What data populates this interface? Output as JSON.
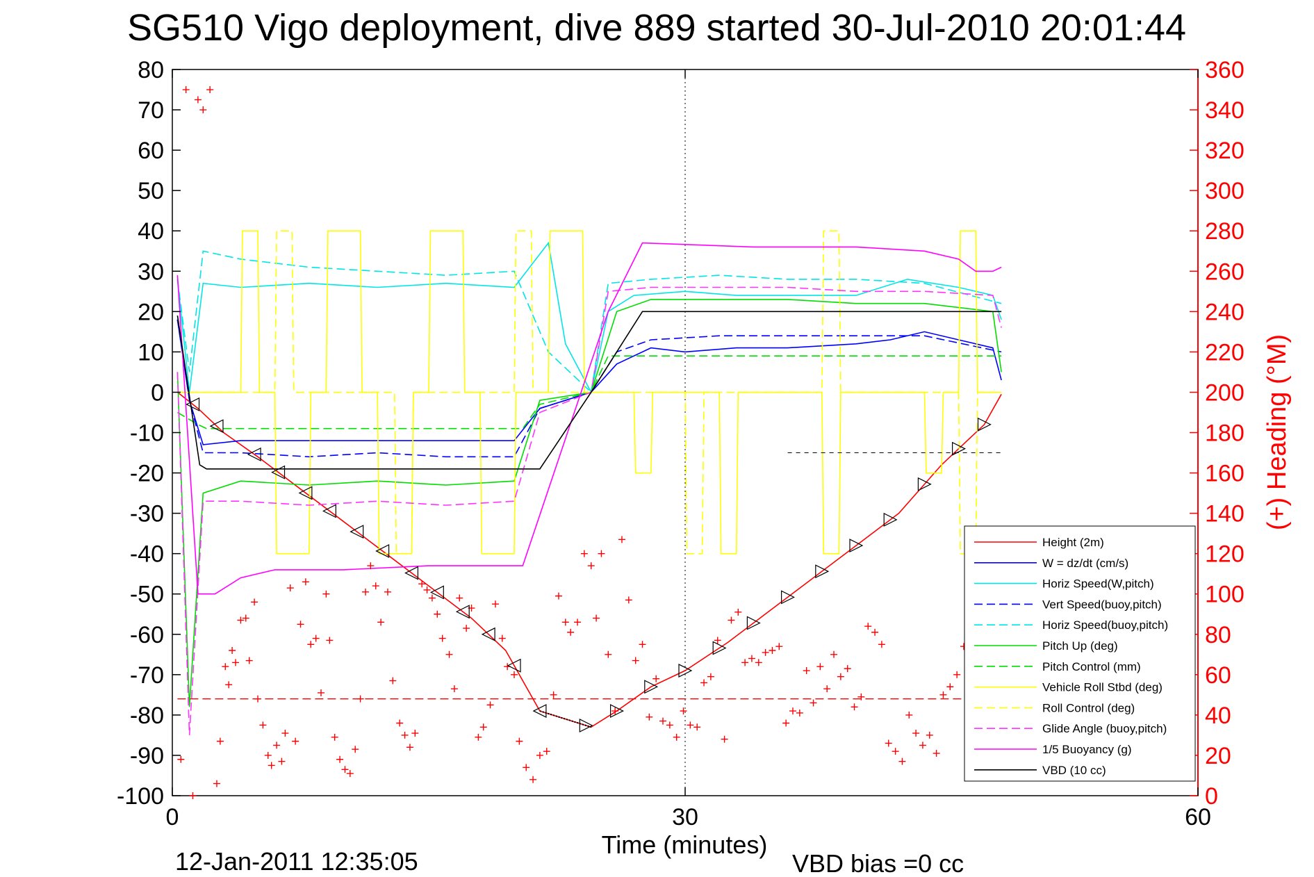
{
  "chart_data": {
    "type": "line",
    "title": "SG510 Vigo deployment, dive 889 started 30-Jul-2010 20:01:44",
    "xlabel": "Time (minutes)",
    "ylabel_right": "(+) Heading (°M)",
    "footer_date": "12-Jan-2011 12:35:05",
    "footer_note": "VBD bias =0 cc",
    "xlim": [
      0,
      60
    ],
    "ylim": [
      -100,
      80
    ],
    "ylim_right": [
      0,
      360
    ],
    "x_ticks": [
      0,
      30,
      60
    ],
    "y_ticks": [
      80,
      70,
      60,
      50,
      40,
      30,
      20,
      10,
      0,
      -10,
      -20,
      -30,
      -40,
      -50,
      -60,
      -70,
      -80,
      -90,
      -100
    ],
    "y_right_ticks": [
      360,
      340,
      320,
      300,
      280,
      260,
      240,
      220,
      200,
      180,
      160,
      140,
      120,
      100,
      80,
      60,
      40,
      20,
      0
    ],
    "grid": "x=30 only",
    "legend_position": "bottom-right",
    "colors": {
      "right_axis": "#ff0000",
      "cyan": "#00e5e5",
      "yellow": "#ffff00",
      "magenta": "#ff33ff",
      "green": "#00dd00"
    },
    "series": [
      {
        "name": "Height (2m)",
        "color": "#ff0000",
        "dash": "solid",
        "x": [
          0.3,
          1.5,
          3,
          5,
          7.5,
          10,
          12.5,
          15,
          17.5,
          19.5,
          21.5,
          24.5,
          26,
          28,
          30,
          32.5,
          35,
          37.5,
          40,
          42.5,
          45,
          47.5,
          48.5
        ],
        "y": [
          0,
          -4,
          -10,
          -16,
          -24,
          -32,
          -40,
          -48,
          -56,
          -64,
          -79,
          -83,
          -79,
          -73,
          -69,
          -62,
          -54,
          -46,
          -38,
          -30,
          -18,
          -8,
          -0.5
        ]
      },
      {
        "name": "W = dz/dt (cm/s)",
        "color": "#0000ff",
        "dash": "solid",
        "x": [
          0.3,
          1,
          1.8,
          4,
          8,
          12,
          16,
          20,
          21.5,
          24.5,
          26,
          28,
          30,
          33,
          36,
          40,
          42,
          44,
          46,
          48,
          48.5
        ],
        "y": [
          18,
          -2,
          -13,
          -12,
          -12,
          -12,
          -12,
          -12,
          -4,
          0,
          7,
          11,
          10,
          11,
          11,
          12,
          13,
          15,
          13,
          11,
          3
        ]
      },
      {
        "name": "Horiz Speed(W,pitch)",
        "color": "#00e5e5",
        "dash": "solid",
        "x": [
          0.3,
          1,
          1.8,
          4,
          8,
          12,
          16,
          20,
          22,
          23,
          24.5,
          25.5,
          27,
          30,
          33,
          36,
          40,
          43,
          46,
          48,
          48.5
        ],
        "y": [
          28,
          0,
          27,
          26,
          27,
          26,
          27,
          26,
          37,
          12,
          0,
          20,
          24,
          25,
          24,
          24,
          24,
          28,
          26,
          24,
          18
        ]
      },
      {
        "name": "Vert Speed(buoy,pitch)",
        "color": "#0000ff",
        "dash": "dashed",
        "x": [
          0.3,
          1,
          1.8,
          4,
          8,
          12,
          16,
          20,
          21.5,
          24.5,
          26,
          28,
          32,
          36,
          40,
          44,
          48.5
        ],
        "y": [
          18,
          -2,
          -15,
          -15,
          -16,
          -15,
          -16,
          -16,
          -4,
          0,
          10,
          13,
          14,
          14,
          14,
          14,
          10
        ]
      },
      {
        "name": "Horiz Speed(buoy,pitch)",
        "color": "#00e5e5",
        "dash": "dashed",
        "x": [
          0.3,
          1,
          1.8,
          4,
          8,
          12,
          16,
          20,
          22,
          24.5,
          25.5,
          28,
          32,
          36,
          40,
          44,
          48.5
        ],
        "y": [
          28,
          5,
          35,
          33,
          31,
          30,
          29,
          30,
          10,
          0,
          27,
          28,
          29,
          28,
          28,
          27,
          22
        ]
      },
      {
        "name": "Pitch Up (deg)",
        "color": "#00dd00",
        "dash": "solid",
        "x": [
          0.3,
          1,
          1.8,
          4,
          8,
          12,
          16,
          20,
          21.5,
          24.5,
          26,
          28,
          32,
          36,
          40,
          44,
          48,
          48.5
        ],
        "y": [
          5,
          -78,
          -25,
          -22,
          -23,
          -22,
          -23,
          -22,
          -2,
          0,
          20,
          23,
          23,
          23,
          22,
          22,
          20,
          5
        ]
      },
      {
        "name": "Pitch Control (mm)",
        "color": "#00dd00",
        "dash": "dashed",
        "x": [
          0.3,
          1.5,
          2,
          20.5,
          21.5,
          24.5,
          25.5,
          48.5
        ],
        "y": [
          -5,
          -8,
          -9,
          -9,
          -3,
          0,
          9,
          9
        ]
      },
      {
        "name": "Vehicle Roll Stbd (deg)",
        "color": "#ffff00",
        "dash": "solid",
        "x": [
          0.3,
          4,
          4.1,
          5,
          5.1,
          6,
          6.1,
          8,
          8.1,
          9,
          9.1,
          11,
          11.1,
          12,
          12.1,
          14,
          14.1,
          15,
          15.1,
          17,
          17.1,
          18,
          18.1,
          20,
          20.1,
          22,
          22.1,
          24,
          24.1,
          27,
          27.1,
          28,
          28.1,
          32,
          32.1,
          33,
          33.1,
          38,
          38.1,
          39,
          39.1,
          44,
          44.1,
          45,
          45.1,
          46,
          46.1,
          47,
          47.1,
          48.5
        ],
        "y": [
          0,
          0,
          40,
          40,
          0,
          0,
          -40,
          -40,
          0,
          0,
          40,
          40,
          0,
          0,
          -40,
          -40,
          0,
          0,
          40,
          40,
          0,
          0,
          -40,
          -40,
          0,
          0,
          40,
          40,
          0,
          0,
          -20,
          -20,
          0,
          0,
          -40,
          -40,
          0,
          0,
          -40,
          -40,
          0,
          0,
          -20,
          -20,
          0,
          0,
          40,
          40,
          0,
          0
        ]
      },
      {
        "name": "Roll Control (deg)",
        "color": "#ffff00",
        "dash": "dashed",
        "x": [
          0.3,
          6,
          6.1,
          7,
          7.1,
          13,
          13.1,
          14,
          14.1,
          20,
          20.1,
          21,
          21.1,
          30,
          30.1,
          31,
          31.1,
          38,
          38.1,
          39,
          39.1,
          46,
          46.1,
          47,
          47.1,
          48.5
        ],
        "y": [
          0,
          0,
          40,
          40,
          0,
          0,
          -40,
          -40,
          0,
          0,
          40,
          40,
          0,
          0,
          -40,
          -40,
          0,
          0,
          40,
          40,
          0,
          0,
          -40,
          -40,
          0,
          0
        ]
      },
      {
        "name": "Glide Angle (buoy,pitch)",
        "color": "#ff33ff",
        "dash": "dashed",
        "x": [
          0.3,
          1,
          1.8,
          4,
          8,
          12,
          16,
          20,
          21.5,
          24.5,
          25.5,
          28,
          32,
          36,
          40,
          44,
          48,
          48.5
        ],
        "y": [
          5,
          -85,
          -27,
          -27,
          -28,
          -27,
          -28,
          -27,
          -5,
          0,
          25,
          26,
          26,
          26,
          25,
          25,
          24,
          16
        ]
      },
      {
        "name": "1/5 Buoyancy (g)",
        "color": "#ff00ff",
        "dash": "solid",
        "x": [
          0.3,
          1.5,
          2.5,
          4,
          6,
          10,
          15,
          20.5,
          25.5,
          27.5,
          34,
          40,
          44,
          46,
          47,
          48,
          48.5
        ],
        "y": [
          29,
          -50,
          -50,
          -46,
          -44,
          -44,
          -43,
          -43,
          20,
          37,
          36,
          36,
          35,
          33,
          30,
          30,
          31
        ]
      },
      {
        "name": "VBD (10 cc)",
        "color": "#000000",
        "dash": "solid",
        "x": [
          0.3,
          1.6,
          2,
          21.5,
          24.5,
          27.5,
          48.5
        ],
        "y": [
          19,
          -18,
          -19,
          -19,
          0,
          20,
          20
        ]
      }
    ],
    "heading_points": {
      "name": "(+) Heading",
      "color": "#ff0000",
      "x": [
        0.5,
        0.8,
        1.2,
        1.5,
        1.8,
        2.2,
        2.6,
        2.8,
        3.1,
        3.3,
        3.5,
        3.7,
        4.0,
        4.3,
        4.5,
        4.8,
        5.0,
        5.3,
        5.6,
        5.8,
        6.1,
        6.4,
        6.6,
        6.9,
        7.2,
        7.5,
        7.8,
        8.1,
        8.4,
        8.7,
        9.0,
        9.2,
        9.5,
        9.8,
        10.1,
        10.4,
        10.7,
        11.0,
        11.3,
        11.6,
        11.9,
        12.2,
        12.6,
        12.9,
        13.3,
        13.6,
        13.9,
        14.2,
        14.6,
        14.9,
        15.2,
        15.5,
        15.8,
        16.2,
        16.5,
        16.8,
        17.2,
        17.5,
        17.9,
        18.2,
        18.6,
        18.9,
        19.3,
        19.6,
        20.0,
        20.3,
        20.7,
        21.1,
        21.5,
        21.9,
        22.3,
        22.6,
        23.0,
        23.3,
        23.7,
        24.1,
        24.5,
        24.8,
        25.1,
        25.5,
        25.9,
        26.3,
        26.7,
        27.1,
        27.5,
        27.9,
        28.3,
        28.7,
        29.1,
        29.5,
        29.9,
        30.3,
        30.7,
        31.1,
        31.5,
        31.9,
        32.3,
        32.7,
        33.1,
        33.5,
        33.9,
        34.3,
        34.7,
        35.1,
        35.5,
        35.9,
        36.3,
        36.7,
        37.1,
        37.5,
        37.9,
        38.3,
        38.7,
        39.1,
        39.5,
        39.9,
        40.3,
        40.7,
        41.1,
        41.5,
        41.9,
        42.3,
        42.7,
        43.1,
        43.5,
        43.9,
        44.3,
        44.7,
        45.1,
        45.5,
        45.9,
        46.3,
        46.7,
        47.1
      ],
      "y": [
        18,
        350,
        0,
        345,
        340,
        350,
        6,
        27,
        64,
        55,
        72,
        66,
        87,
        88,
        67,
        96,
        48,
        35,
        20,
        15,
        25,
        17,
        31,
        103,
        27,
        85,
        106,
        75,
        78,
        51,
        100,
        77,
        29,
        18,
        13,
        11,
        23,
        48,
        101,
        114,
        104,
        86,
        101,
        57,
        36,
        30,
        24,
        31,
        105,
        102,
        98,
        90,
        78,
        70,
        53,
        98,
        83,
        93,
        29,
        34,
        45,
        95,
        78,
        64,
        60,
        27,
        14,
        8,
        20,
        22,
        50,
        99,
        86,
        81,
        86,
        120,
        114,
        88,
        120,
        70,
        42,
        127,
        97,
        67,
        75,
        39,
        58,
        37,
        35,
        29,
        42,
        35,
        34,
        56,
        59,
        77,
        28,
        87,
        91,
        66,
        68,
        66,
        71,
        72,
        74,
        36,
        42,
        41,
        62,
        46,
        64,
        53,
        70,
        59,
        63,
        44,
        49,
        84,
        81,
        75,
        26,
        22,
        17,
        40,
        31,
        25,
        30,
        21,
        50,
        54,
        60,
        74,
        70,
        65
      ]
    },
    "markers": {
      "down_triangle_x": [
        1.2,
        2.6,
        4.8,
        6.2,
        7.8,
        9.2,
        10.8,
        12.3,
        14.0,
        15.5,
        17.0,
        18.5,
        20.0,
        21.5
      ],
      "up_triangle_x": [
        24.2,
        26.0,
        28.0,
        30.0,
        32.0,
        34.0,
        36.0,
        38.0,
        40.0,
        42.0,
        44.0,
        46.0,
        47.5
      ],
      "dotted_segment_x": [
        21.5,
        24.5
      ],
      "height_reference": {
        "y": -76,
        "dash": "dashed",
        "color": "#ff0000"
      },
      "upper_dashes": [
        {
          "y": 20,
          "x0": 37,
          "x1": 48.5
        },
        {
          "y": -15,
          "x0": 36,
          "x1": 48.5
        }
      ]
    }
  }
}
